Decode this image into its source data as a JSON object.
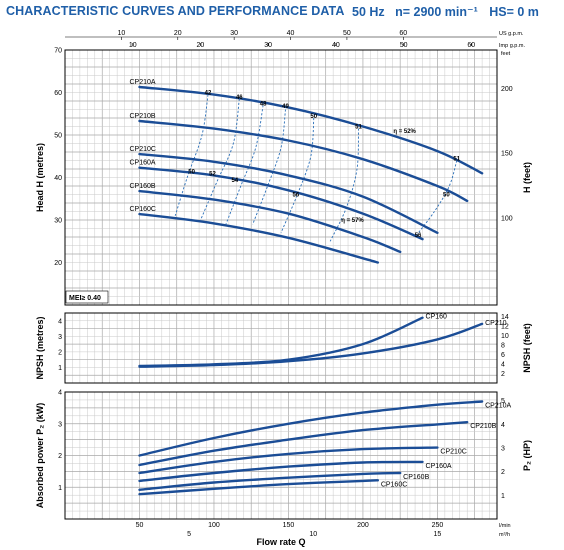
{
  "header": {
    "title": "CHARACTERISTIC CURVES AND PERFORMANCE DATA",
    "frequency": "50 Hz",
    "speed": "n= 2900 min⁻¹",
    "hs": "HS= 0 m"
  },
  "chart_data": [
    {
      "type": "line",
      "panel": "head",
      "ylabel": "Head H (metres)",
      "ylabel_right": "H (feet)",
      "xlim": [
        0,
        290
      ],
      "ylim": [
        10,
        70
      ],
      "y_ticks": [
        "20",
        "30",
        "40",
        "50",
        "60",
        "70"
      ],
      "y_ticks_right": [
        "100",
        "150",
        "200"
      ],
      "top_axis_1": {
        "unit": "US g.p.m.",
        "ticks": [
          "10",
          "20",
          "30",
          "40",
          "50",
          "60"
        ]
      },
      "top_axis_2": {
        "unit": "Imp g.p.m.",
        "ticks": [
          "10",
          "20",
          "30",
          "40",
          "50",
          "60"
        ]
      },
      "annotation": "MEI≥ 0.40",
      "series": [
        {
          "name": "CP210A",
          "x": [
            50,
            100,
            150,
            200,
            250,
            280
          ],
          "y": [
            61.3,
            59.5,
            56.5,
            52.0,
            46.2,
            41.0
          ]
        },
        {
          "name": "CP210B",
          "x": [
            50,
            100,
            150,
            200,
            250,
            270
          ],
          "y": [
            53.3,
            51.5,
            48.7,
            44.3,
            38.0,
            34.5
          ]
        },
        {
          "name": "CP210C",
          "x": [
            50,
            100,
            150,
            200,
            250
          ],
          "y": [
            45.5,
            43.7,
            40.5,
            35.5,
            27.0
          ]
        },
        {
          "name": "CP160A",
          "x": [
            50,
            100,
            150,
            200,
            240
          ],
          "y": [
            42.3,
            40.5,
            37.0,
            31.5,
            25.5
          ]
        },
        {
          "name": "CP160B",
          "x": [
            50,
            100,
            150,
            200,
            225
          ],
          "y": [
            36.8,
            34.8,
            31.5,
            26.0,
            22.5
          ]
        },
        {
          "name": "CP160C",
          "x": [
            50,
            100,
            150,
            200,
            210
          ],
          "y": [
            31.4,
            29.2,
            25.8,
            21.0,
            20.0
          ]
        }
      ],
      "efficiency_labels": [
        {
          "text": "42",
          "x": 96,
          "y": 59.5
        },
        {
          "text": "46",
          "x": 117,
          "y": 58.5
        },
        {
          "text": "48",
          "x": 133,
          "y": 57.0
        },
        {
          "text": "49",
          "x": 148,
          "y": 56.3
        },
        {
          "text": "50",
          "x": 167,
          "y": 54.0
        },
        {
          "text": "51",
          "x": 197,
          "y": 51.5
        },
        {
          "text": "η = 52%",
          "x": 228,
          "y": 50.5
        },
        {
          "text": "51",
          "x": 263,
          "y": 44.0
        },
        {
          "text": "50",
          "x": 256,
          "y": 35.5
        },
        {
          "text": "56",
          "x": 237,
          "y": 26.0
        },
        {
          "text": "η = 57%",
          "x": 193,
          "y": 29.5
        },
        {
          "text": "56",
          "x": 155,
          "y": 35.5
        },
        {
          "text": "54",
          "x": 114,
          "y": 39.0
        },
        {
          "text": "52",
          "x": 99,
          "y": 40.5
        },
        {
          "text": "50",
          "x": 85,
          "y": 41.0
        }
      ]
    },
    {
      "type": "line",
      "panel": "npsh",
      "ylabel": "NPSH (metres)",
      "ylabel_right": "NPSH (feet)",
      "xlim": [
        0,
        290
      ],
      "ylim": [
        0,
        4.5
      ],
      "y_ticks": [
        "1",
        "2",
        "3",
        "4"
      ],
      "y_ticks_right": [
        "2",
        "4",
        "6",
        "8",
        "10",
        "12",
        "14"
      ],
      "series": [
        {
          "name": "CP160",
          "x": [
            50,
            100,
            150,
            200,
            240
          ],
          "y": [
            1.1,
            1.2,
            1.5,
            2.5,
            4.2
          ]
        },
        {
          "name": "CP210",
          "x": [
            50,
            100,
            150,
            200,
            250,
            280
          ],
          "y": [
            1.05,
            1.15,
            1.4,
            1.9,
            2.8,
            3.8
          ]
        }
      ]
    },
    {
      "type": "line",
      "panel": "power",
      "ylabel": "Absorbed power P₂ (kW)",
      "ylabel_right": "P₂ (HP)",
      "xlabel": "Flow rate Q",
      "xlim": [
        0,
        290
      ],
      "ylim": [
        0,
        4
      ],
      "x_ticks": [
        "50",
        "100",
        "150",
        "200",
        "250"
      ],
      "x_unit": "l/min",
      "x_ticks_m3h": [
        "5",
        "10",
        "15"
      ],
      "x_unit_m3h": "m³/h",
      "y_ticks": [
        "1",
        "2",
        "3",
        "4"
      ],
      "y_ticks_right": [
        "1",
        "2",
        "3",
        "4",
        "5"
      ],
      "series": [
        {
          "name": "CP210A",
          "x": [
            50,
            100,
            150,
            200,
            250,
            280
          ],
          "y": [
            2.0,
            2.55,
            3.0,
            3.35,
            3.6,
            3.7
          ]
        },
        {
          "name": "CP210B",
          "x": [
            50,
            100,
            150,
            200,
            250,
            270
          ],
          "y": [
            1.7,
            2.15,
            2.5,
            2.8,
            2.98,
            3.05
          ]
        },
        {
          "name": "CP210C",
          "x": [
            50,
            100,
            150,
            200,
            250
          ],
          "y": [
            1.45,
            1.8,
            2.05,
            2.2,
            2.25
          ]
        },
        {
          "name": "CP160A",
          "x": [
            50,
            100,
            150,
            200,
            240
          ],
          "y": [
            1.2,
            1.45,
            1.65,
            1.78,
            1.8
          ]
        },
        {
          "name": "CP160B",
          "x": [
            50,
            100,
            150,
            200,
            225
          ],
          "y": [
            0.92,
            1.15,
            1.3,
            1.42,
            1.45
          ]
        },
        {
          "name": "CP160C",
          "x": [
            50,
            100,
            150,
            200,
            210
          ],
          "y": [
            0.78,
            0.95,
            1.1,
            1.2,
            1.22
          ]
        }
      ]
    }
  ]
}
